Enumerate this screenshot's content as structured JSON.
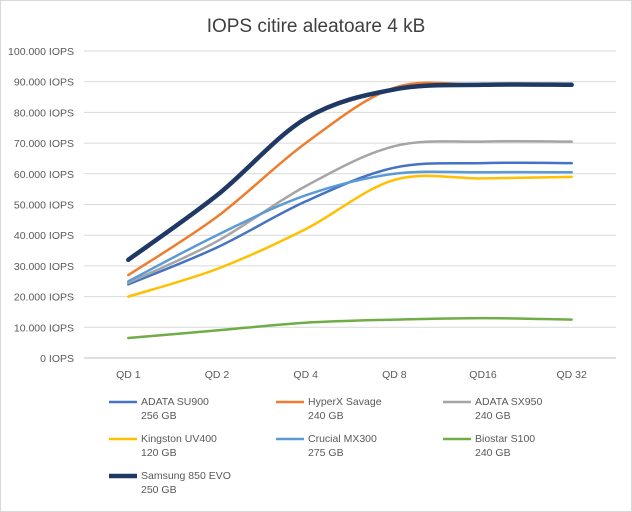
{
  "chart_data": {
    "type": "line",
    "title": "IOPS citire aleatoare 4 kB",
    "xlabel": "",
    "ylabel": "",
    "categories": [
      "QD 1",
      "QD 2",
      "QD 4",
      "QD 8",
      "QD16",
      "QD 32"
    ],
    "y_tick_labels": [
      "0 IOPS",
      "10.000 IOPS",
      "20.000 IOPS",
      "30.000 IOPS",
      "40.000 IOPS",
      "50.000 IOPS",
      "60.000 IOPS",
      "70.000 IOPS",
      "80.000 IOPS",
      "90.000 IOPS",
      "100.000 IOPS"
    ],
    "ylim": [
      0,
      100000
    ],
    "grid": true,
    "legend_position": "bottom",
    "series": [
      {
        "name": "ADATA SU900",
        "detail": "256 GB",
        "color": "#4472C4",
        "values": [
          24000,
          36000,
          51000,
          62000,
          63500,
          63500
        ],
        "bold": false
      },
      {
        "name": "HyperX Savage",
        "detail": "240 GB",
        "color": "#ED7D31",
        "values": [
          27000,
          46000,
          70000,
          88000,
          89000,
          89000
        ],
        "bold": false
      },
      {
        "name": "ADATA SX950",
        "detail": "240 GB",
        "color": "#A5A5A5",
        "values": [
          24500,
          38000,
          56000,
          69000,
          70500,
          70500
        ],
        "bold": false
      },
      {
        "name": "Kingston UV400",
        "detail": "120 GB",
        "color": "#FFC000",
        "values": [
          20000,
          29000,
          42000,
          58000,
          58500,
          59000
        ],
        "bold": false
      },
      {
        "name": "Crucial MX300",
        "detail": "275 GB",
        "color": "#5B9BD5",
        "values": [
          25000,
          40000,
          53000,
          60000,
          60500,
          60500
        ],
        "bold": false
      },
      {
        "name": "Biostar S100",
        "detail": "240 GB",
        "color": "#70AD47",
        "values": [
          6500,
          9000,
          11500,
          12500,
          13000,
          12500
        ],
        "bold": false
      },
      {
        "name": "Samsung 850 EVO",
        "detail": "250 GB",
        "color": "#203864",
        "values": [
          32000,
          53000,
          78000,
          87500,
          89000,
          89000
        ],
        "bold": true
      }
    ]
  }
}
